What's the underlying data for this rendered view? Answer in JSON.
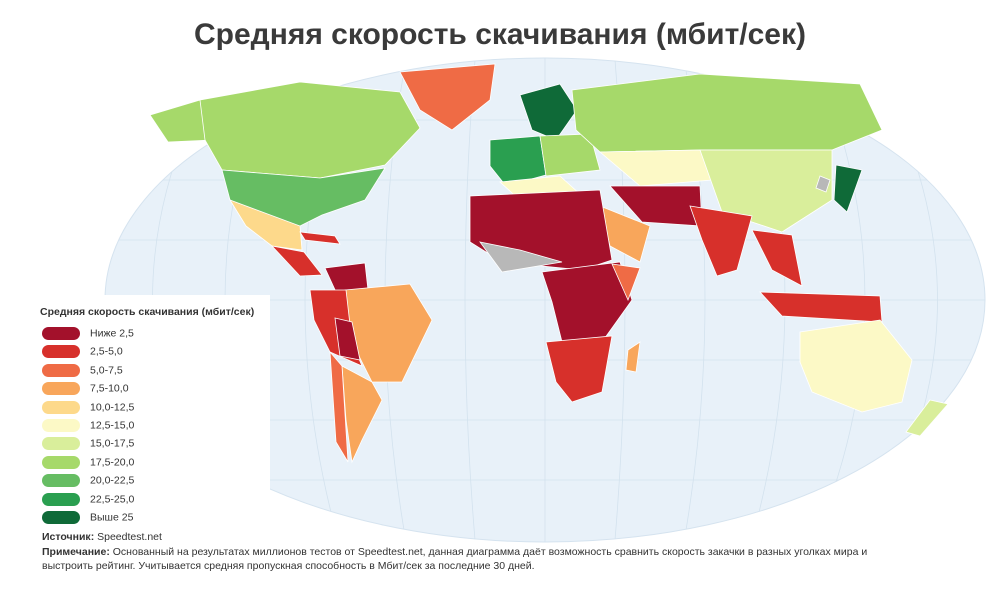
{
  "title": "Средняя скорость скачивания (мбит/сек)",
  "legend": {
    "title": "Средняя скорость скачивания (мбит/сек)",
    "items": [
      {
        "label": "Ниже 2,5",
        "color": "#a3112b"
      },
      {
        "label": "2,5-5,0",
        "color": "#d7302b"
      },
      {
        "label": "5,0-7,5",
        "color": "#ef6b45"
      },
      {
        "label": "7,5-10,0",
        "color": "#f8a65b"
      },
      {
        "label": "10,0-12,5",
        "color": "#fdd98b"
      },
      {
        "label": "12,5-15,0",
        "color": "#fcf9c6"
      },
      {
        "label": "15,0-17,5",
        "color": "#d9ee9b"
      },
      {
        "label": "17,5-20,0",
        "color": "#a6d96a"
      },
      {
        "label": "20,0-22,5",
        "color": "#66bd63"
      },
      {
        "label": "22,5-25,0",
        "color": "#2a9f50"
      },
      {
        "label": "Выше 25",
        "color": "#0f6a38"
      }
    ]
  },
  "source": {
    "label": "Источник:",
    "text": "Speedtest.net"
  },
  "note": {
    "label": "Примечание:",
    "lines": [
      "Основанный на результатах миллионов тестов от Speedtest.net, данная диаграмма даёт возможность сравнить скорость закачки в разных уголках мира и",
      "выстроить рейтинг. Учитывается средняя пропускная способность в Мбит/сек за последние 30 дней."
    ]
  }
}
